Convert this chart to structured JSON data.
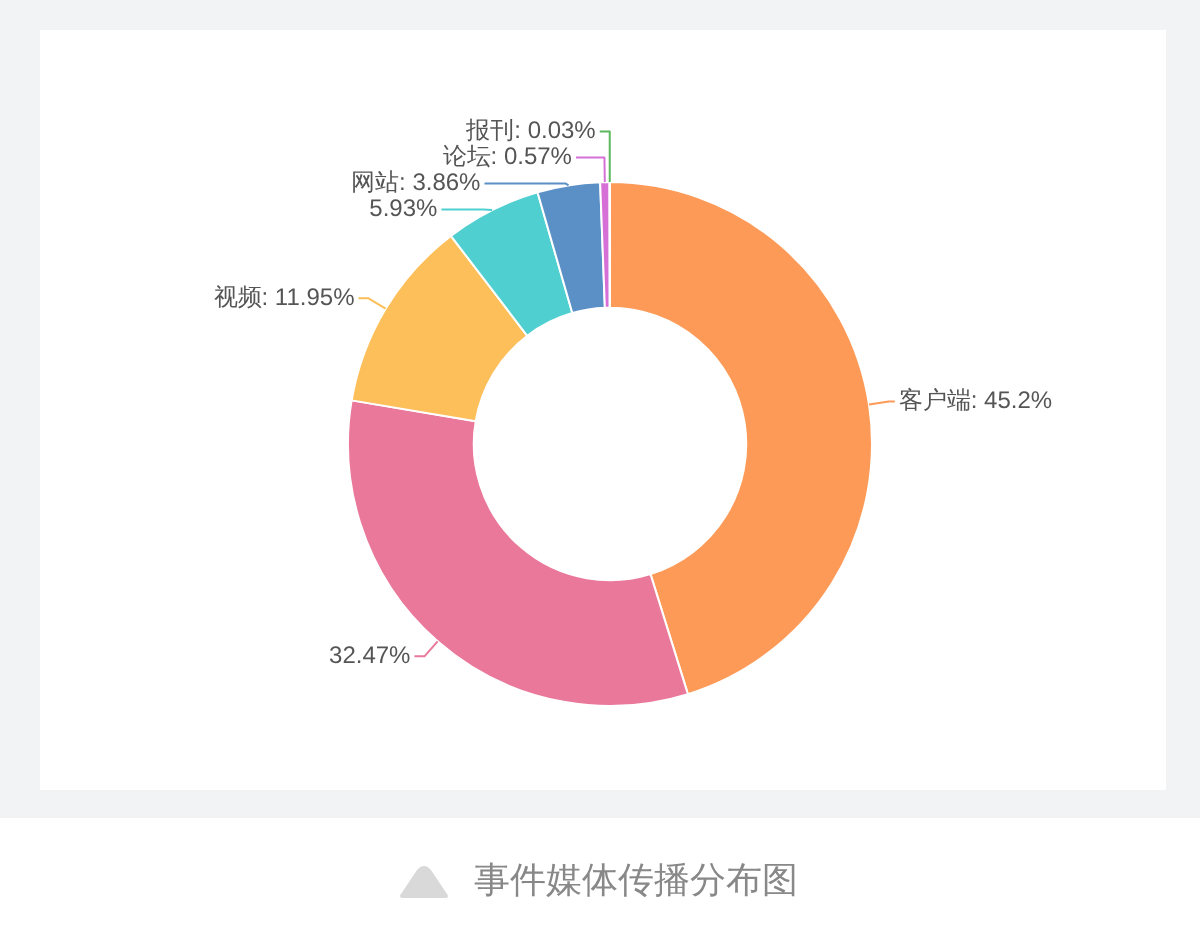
{
  "chart_data": {
    "type": "donut",
    "categories": [
      "客户端",
      null,
      "视频",
      null,
      "网站",
      "论坛",
      "报刊"
    ],
    "values": [
      45.2,
      32.47,
      11.95,
      5.93,
      3.86,
      0.57,
      0.03
    ],
    "value_labels": [
      "45.2%",
      "32.47%",
      "11.95%",
      "5.93%",
      "3.86%",
      "0.57%",
      "0.03%"
    ],
    "colors": [
      "#fd9a57",
      "#e9789a",
      "#fdbf5a",
      "#4fcfd0",
      "#5b90c7",
      "#d670d6",
      "#5cb85c"
    ],
    "data_labels": true,
    "annotations": [
      "事件媒体传播分布图"
    ]
  }
}
